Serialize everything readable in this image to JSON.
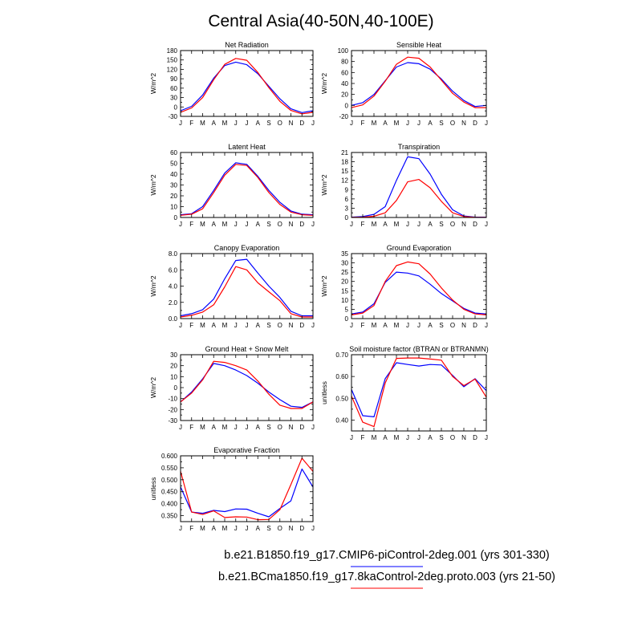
{
  "figure_title": "Central Asia(40-50N,40-100E)",
  "legend": [
    {
      "label": "b.e21.B1850.f19_g17.CMIP6-piControl-2deg.001 (yrs 301-330)",
      "color": "#0000ff"
    },
    {
      "label": "b.e21.BCma1850.f19_g17.8kaControl-2deg.proto.003 (yrs 21-50)",
      "color": "#ff0000"
    }
  ],
  "colors": {
    "blue": "#0000ff",
    "red": "#ff0000"
  },
  "chart_data": [
    {
      "type": "line",
      "title": "Net Radiation",
      "ylabel": "W/m^2",
      "categories": [
        "J",
        "F",
        "M",
        "A",
        "M",
        "J",
        "J",
        "A",
        "S",
        "O",
        "N",
        "D",
        "J"
      ],
      "ylim": [
        -30,
        180
      ],
      "yticks": [
        -30,
        0,
        30,
        60,
        90,
        120,
        150,
        180
      ],
      "ytick_labels": [
        "-30",
        "0",
        "30",
        "60",
        "90",
        "120",
        "150",
        "180"
      ],
      "series": [
        {
          "color": "#0000ff",
          "values": [
            -12,
            2,
            38,
            92,
            132,
            143,
            135,
            106,
            66,
            26,
            -6,
            -18,
            -12
          ]
        },
        {
          "color": "#ff0000",
          "values": [
            -17,
            -3,
            30,
            87,
            136,
            155,
            149,
            110,
            62,
            18,
            -11,
            -22,
            -17
          ]
        }
      ]
    },
    {
      "type": "line",
      "title": "Sensible Heat",
      "ylabel": "W/m^2",
      "categories": [
        "J",
        "F",
        "M",
        "A",
        "M",
        "J",
        "J",
        "A",
        "S",
        "O",
        "N",
        "D",
        "J"
      ],
      "ylim": [
        -20,
        100
      ],
      "yticks": [
        -20,
        0,
        20,
        40,
        60,
        80,
        100
      ],
      "ytick_labels": [
        "-20",
        "0",
        "20",
        "40",
        "60",
        "80",
        "100"
      ],
      "series": [
        {
          "color": "#0000ff",
          "values": [
            0,
            5,
            20,
            45,
            70,
            78,
            76,
            66,
            48,
            26,
            9,
            -2,
            0
          ]
        },
        {
          "color": "#ff0000",
          "values": [
            -4,
            1,
            17,
            44,
            75,
            88,
            86,
            70,
            46,
            22,
            6,
            -4,
            -4
          ]
        }
      ]
    },
    {
      "type": "line",
      "title": "Latent Heat",
      "ylabel": "W/m^2",
      "categories": [
        "J",
        "F",
        "M",
        "A",
        "M",
        "J",
        "J",
        "A",
        "S",
        "O",
        "N",
        "D",
        "J"
      ],
      "ylim": [
        0,
        60
      ],
      "yticks": [
        0,
        10,
        20,
        30,
        40,
        50,
        60
      ],
      "ytick_labels": [
        "0",
        "10",
        "20",
        "30",
        "40",
        "50",
        "60"
      ],
      "series": [
        {
          "color": "#0000ff",
          "values": [
            2.5,
            3.5,
            10,
            25,
            41,
            50.5,
            49,
            38,
            25,
            14,
            6,
            3,
            2.5
          ]
        },
        {
          "color": "#ff0000",
          "values": [
            2,
            3,
            8,
            23,
            39,
            49,
            48,
            37,
            23,
            12,
            5,
            2.5,
            2
          ]
        }
      ]
    },
    {
      "type": "line",
      "title": "Transpiration",
      "ylabel": "W/m^2",
      "categories": [
        "J",
        "F",
        "M",
        "A",
        "M",
        "J",
        "J",
        "A",
        "S",
        "O",
        "N",
        "D",
        "J"
      ],
      "ylim": [
        0,
        21
      ],
      "yticks": [
        0,
        3,
        6,
        9,
        12,
        15,
        18,
        21
      ],
      "ytick_labels": [
        "0",
        "3",
        "6",
        "9",
        "12",
        "15",
        "18",
        "21"
      ],
      "series": [
        {
          "color": "#0000ff",
          "values": [
            0.1,
            0.3,
            1,
            3.5,
            12,
            19.6,
            19,
            14,
            7.5,
            2.5,
            0.5,
            0.1,
            0.1
          ]
        },
        {
          "color": "#ff0000",
          "values": [
            0.05,
            0.1,
            0.4,
            1.5,
            5.5,
            11.5,
            12.3,
            9.6,
            5.2,
            1.5,
            0.3,
            0.05,
            0.05
          ]
        }
      ]
    },
    {
      "type": "line",
      "title": "Canopy Evaporation",
      "ylabel": "W/m^2",
      "categories": [
        "J",
        "F",
        "M",
        "A",
        "M",
        "J",
        "J",
        "A",
        "S",
        "O",
        "N",
        "D",
        "J"
      ],
      "ylim": [
        0,
        8
      ],
      "yticks": [
        0,
        2,
        4,
        6,
        8
      ],
      "ytick_labels": [
        "0.0",
        "2.0",
        "4.0",
        "6.0",
        "8.0"
      ],
      "series": [
        {
          "color": "#0000ff",
          "values": [
            0.35,
            0.6,
            1.1,
            2.4,
            4.9,
            7.15,
            7.3,
            5.6,
            4.0,
            2.6,
            0.9,
            0.35,
            0.35
          ]
        },
        {
          "color": "#ff0000",
          "values": [
            0.2,
            0.4,
            0.8,
            1.7,
            3.9,
            6.4,
            6.0,
            4.4,
            3.3,
            2.2,
            0.6,
            0.2,
            0.2
          ]
        }
      ]
    },
    {
      "type": "line",
      "title": "Ground Evaporation",
      "ylabel": "W/m^2",
      "categories": [
        "J",
        "F",
        "M",
        "A",
        "M",
        "J",
        "J",
        "A",
        "S",
        "O",
        "N",
        "D",
        "J"
      ],
      "ylim": [
        0,
        35
      ],
      "yticks": [
        0,
        5,
        10,
        15,
        20,
        25,
        30,
        35
      ],
      "ytick_labels": [
        "0",
        "5",
        "10",
        "15",
        "20",
        "25",
        "30",
        "35"
      ],
      "series": [
        {
          "color": "#0000ff",
          "values": [
            2.5,
            3.5,
            8,
            19.5,
            25,
            24.5,
            23,
            18.5,
            13.5,
            9.5,
            5.5,
            3,
            2.5
          ]
        },
        {
          "color": "#ff0000",
          "values": [
            2,
            3,
            7,
            20,
            28.5,
            30.5,
            29.5,
            24,
            16.5,
            10,
            5,
            2.5,
            2
          ]
        }
      ]
    },
    {
      "type": "line",
      "title": "Ground Heat + Snow Melt",
      "ylabel": "W/m^2",
      "categories": [
        "J",
        "F",
        "M",
        "A",
        "M",
        "J",
        "J",
        "A",
        "S",
        "O",
        "N",
        "D",
        "J"
      ],
      "ylim": [
        -30,
        30
      ],
      "yticks": [
        -30,
        -20,
        -10,
        0,
        10,
        20,
        30
      ],
      "ytick_labels": [
        "-30",
        "-20",
        "-10",
        "0",
        "10",
        "20",
        "30"
      ],
      "series": [
        {
          "color": "#0000ff",
          "values": [
            -13,
            -4,
            8,
            22,
            20,
            16,
            11,
            4,
            -4,
            -11,
            -17,
            -18,
            -13
          ]
        },
        {
          "color": "#ff0000",
          "values": [
            -13,
            -5,
            7,
            24,
            23,
            20,
            16,
            6,
            -6,
            -16,
            -19,
            -19,
            -13
          ]
        }
      ]
    },
    {
      "type": "line",
      "title": "Soil moisture factor (BTRAN or BTRANMN)",
      "ylabel": "unitless",
      "categories": [
        "J",
        "F",
        "M",
        "A",
        "M",
        "J",
        "J",
        "A",
        "S",
        "O",
        "N",
        "D",
        "J"
      ],
      "ylim": [
        0.35,
        0.7
      ],
      "yticks": [
        0.4,
        0.5,
        0.6,
        0.7
      ],
      "ytick_labels": [
        "0.40",
        "0.50",
        "0.60",
        "0.70"
      ],
      "series": [
        {
          "color": "#0000ff",
          "values": [
            0.54,
            0.42,
            0.415,
            0.59,
            0.663,
            0.655,
            0.648,
            0.655,
            0.653,
            0.605,
            0.553,
            0.59,
            0.535
          ]
        },
        {
          "color": "#ff0000",
          "values": [
            0.51,
            0.39,
            0.37,
            0.57,
            0.683,
            0.685,
            0.685,
            0.68,
            0.675,
            0.6,
            0.558,
            0.588,
            0.505
          ]
        }
      ]
    },
    {
      "type": "line",
      "title": "Evaporative Fraction",
      "ylabel": "unitless",
      "categories": [
        "J",
        "F",
        "M",
        "A",
        "M",
        "J",
        "J",
        "A",
        "S",
        "O",
        "N",
        "D",
        "J"
      ],
      "ylim": [
        0.325,
        0.6
      ],
      "yticks": [
        0.35,
        0.4,
        0.45,
        0.5,
        0.55,
        0.6
      ],
      "ytick_labels": [
        "0.350",
        "0.400",
        "0.450",
        "0.500",
        "0.550",
        "0.600"
      ],
      "series": [
        {
          "color": "#0000ff",
          "values": [
            0.47,
            0.365,
            0.36,
            0.372,
            0.367,
            0.378,
            0.377,
            0.36,
            0.345,
            0.38,
            0.412,
            0.545,
            0.47
          ]
        },
        {
          "color": "#ff0000",
          "values": [
            0.535,
            0.365,
            0.355,
            0.37,
            0.342,
            0.345,
            0.344,
            0.333,
            0.334,
            0.375,
            0.48,
            0.59,
            0.535
          ]
        }
      ]
    }
  ]
}
